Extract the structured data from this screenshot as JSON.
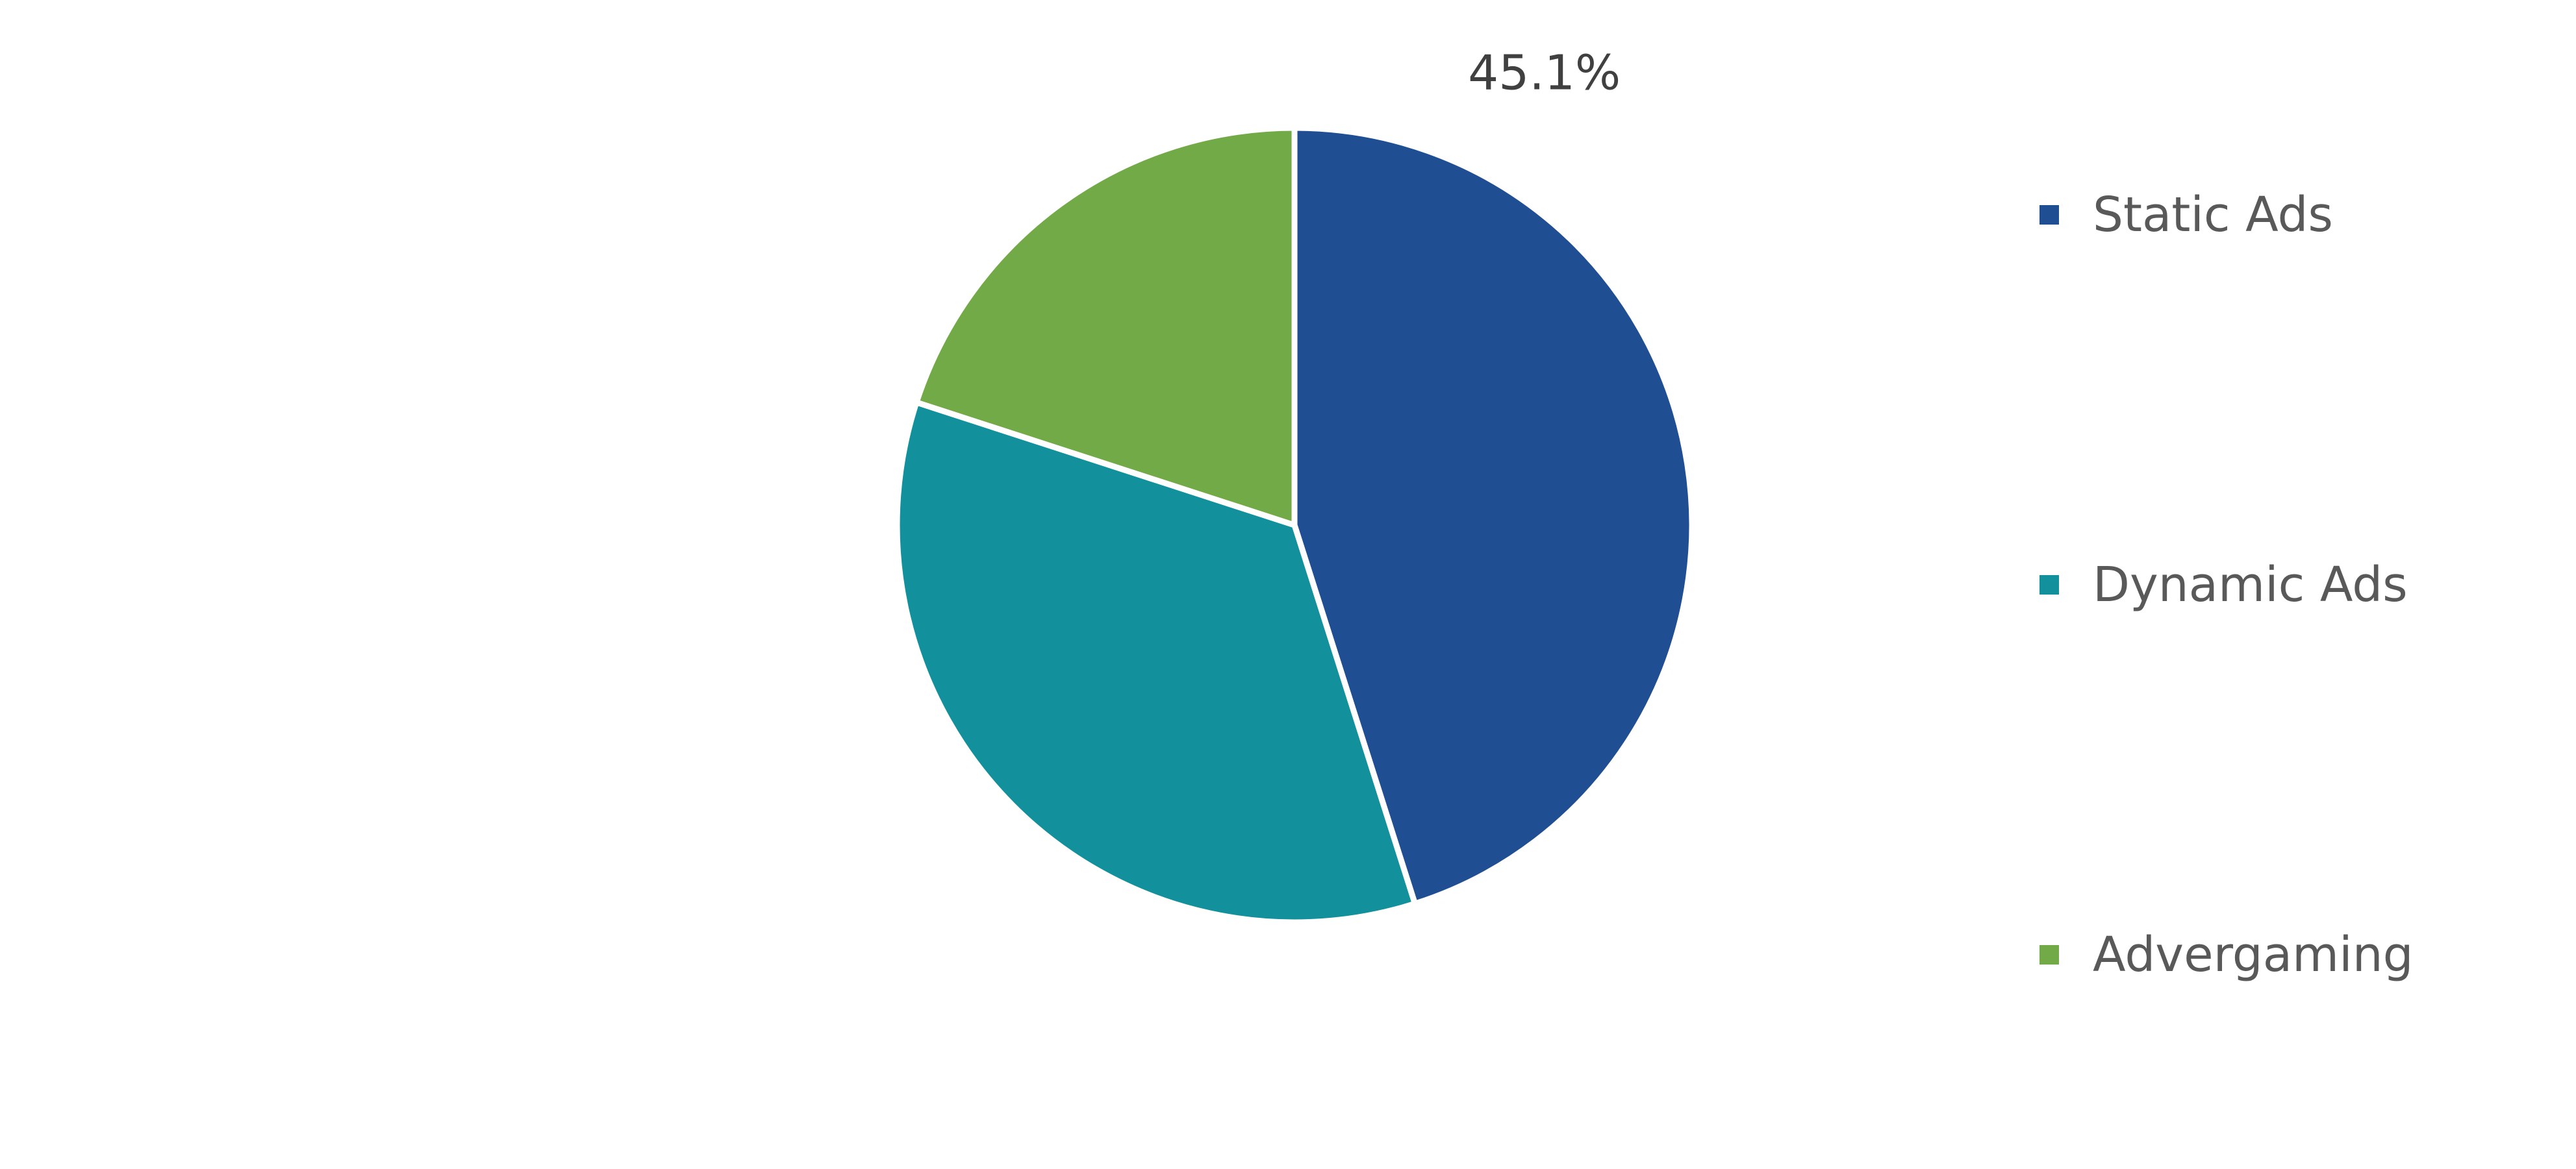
{
  "chart_data": {
    "type": "pie",
    "title": "",
    "slices": [
      {
        "label": "Static Ads",
        "value": 45.1,
        "color": "#1f4e93",
        "data_label": "45.1%"
      },
      {
        "label": "Dynamic Ads",
        "value": 34.9,
        "color": "#12919d",
        "data_label": ""
      },
      {
        "label": "Advergaming",
        "value": 20.0,
        "color": "#71aa46",
        "data_label": ""
      }
    ],
    "legend_position": "right",
    "start_angle": "12 o'clock",
    "direction": "clockwise"
  }
}
